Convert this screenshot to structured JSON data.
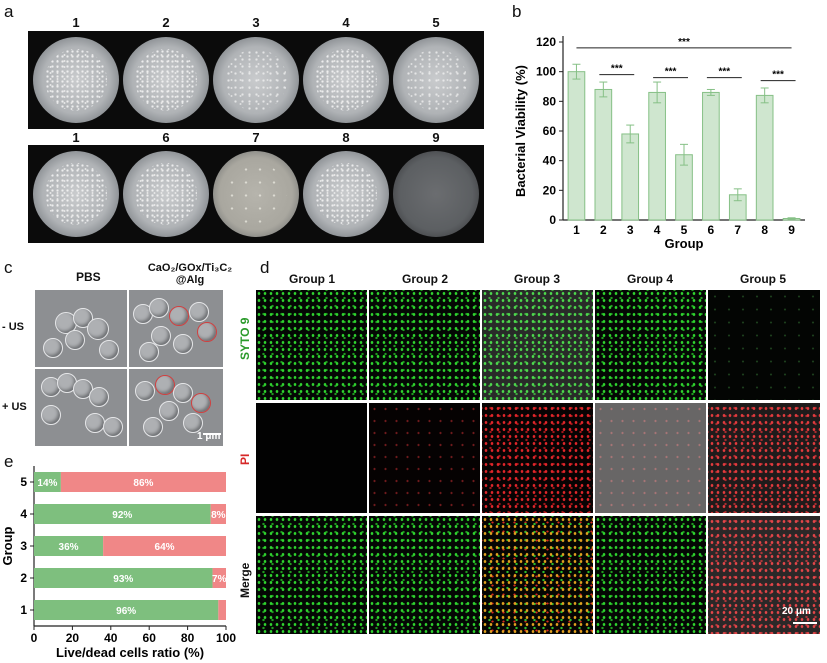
{
  "panel_labels": {
    "a": "a",
    "b": "b",
    "c": "c",
    "d": "d",
    "e": "e"
  },
  "panel_a": {
    "top_row": [
      "1",
      "2",
      "3",
      "4",
      "5"
    ],
    "bottom_row": [
      "1",
      "6",
      "7",
      "8",
      "9"
    ]
  },
  "chart_data": [
    {
      "type": "bar",
      "panel": "b",
      "categories": [
        "1",
        "2",
        "3",
        "4",
        "5",
        "6",
        "7",
        "8",
        "9"
      ],
      "values": [
        100,
        88,
        58,
        86,
        44,
        86,
        17,
        84,
        1
      ],
      "errors": [
        5,
        5,
        6,
        7,
        7,
        2,
        4,
        5,
        0.5
      ],
      "xlabel": "Group",
      "ylabel": "Bacterial Viability (%)",
      "ylim": [
        0,
        120
      ],
      "yticks": [
        "0",
        "20",
        "40",
        "60",
        "80",
        "100",
        "120"
      ],
      "significance": [
        {
          "from": "1",
          "to": "9",
          "label": "***"
        },
        {
          "from": "2",
          "to": "3",
          "label": "***"
        },
        {
          "from": "4",
          "to": "5",
          "label": "***"
        },
        {
          "from": "6",
          "to": "7",
          "label": "***"
        },
        {
          "from": "8",
          "to": "9",
          "label": "***"
        }
      ],
      "bar_color": "#cfe6cf",
      "bar_edge": "#86c086"
    },
    {
      "type": "bar",
      "orientation": "horizontal-stacked",
      "panel": "e",
      "categories": [
        "1",
        "2",
        "3",
        "4",
        "5"
      ],
      "series": [
        {
          "values": [
            96,
            93,
            36,
            92,
            14
          ],
          "color": "#7ebf7e"
        },
        {
          "values": [
            4,
            7,
            64,
            8,
            86
          ],
          "color": "#f08787"
        }
      ],
      "labels_live": [
        "96%",
        "93%",
        "36%",
        "92%",
        "14%"
      ],
      "labels_dead": [
        "",
        "7%",
        "64%",
        "8%",
        "86%"
      ],
      "xlabel": "Live/dead cells ratio (%)",
      "ylabel": "Group",
      "xlim": [
        0,
        100
      ],
      "xticks": [
        "0",
        "20",
        "40",
        "60",
        "80",
        "100"
      ]
    }
  ],
  "panel_c": {
    "col_pbs": "PBS",
    "col_treat_line1": "CaO₂/GOx/Ti₃C₂",
    "col_treat_line2": "@Alg",
    "row_minus": "- US",
    "row_plus": "+ US",
    "scale": "1 μm"
  },
  "panel_d": {
    "columns": [
      "Group 1",
      "Group 2",
      "Group 3",
      "Group 4",
      "Group 5"
    ],
    "rows": {
      "syto": "SYTO 9",
      "pi": "PI",
      "merge": "Merge"
    },
    "row_colors": {
      "syto": "#2a9a2a",
      "pi": "#d62828",
      "merge": "#111111"
    },
    "scale": "20 μm"
  }
}
